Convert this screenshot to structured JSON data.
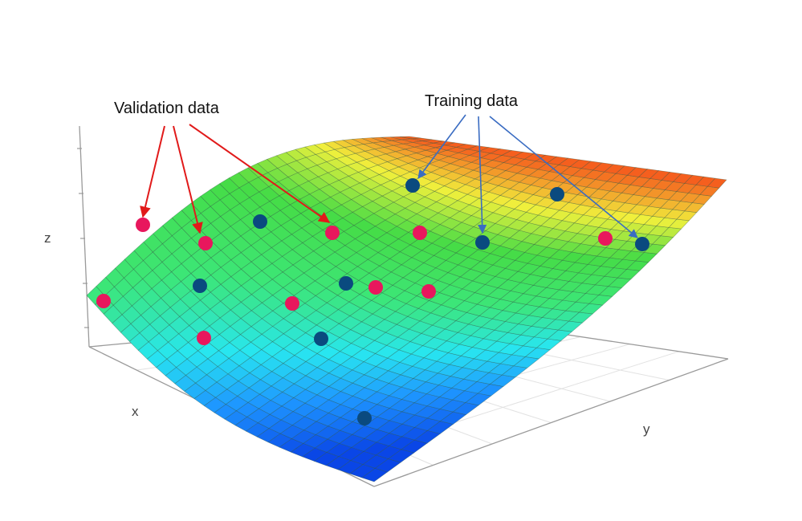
{
  "annotations": {
    "validation_label": "Validation data",
    "training_label": "Training data"
  },
  "axes": {
    "x_label": "x",
    "y_label": "y",
    "z_label": "z"
  },
  "colors": {
    "validation_point": "#e8175d",
    "training_point": "#0a4a7f",
    "validation_arrow": "#e11a1a",
    "training_arrow": "#3a6cc2",
    "axis_line": "#9a9a9a",
    "grid_line": "#e2e2e2"
  }
}
